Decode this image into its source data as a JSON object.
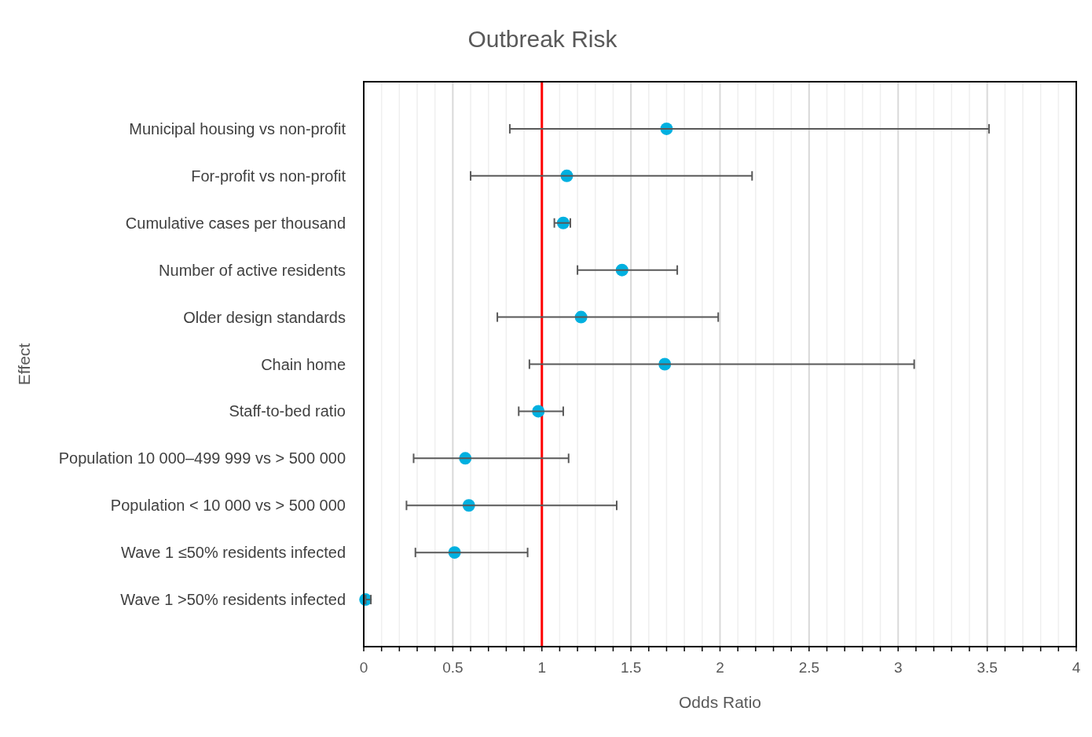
{
  "chart_data": {
    "type": "scatter",
    "orientation": "horizontal",
    "title": "Outbreak Risk",
    "xlabel": "Odds Ratio",
    "ylabel": "Effect",
    "categories": [
      "Municipal housing vs non-profit",
      "For-profit vs non-profit",
      "Cumulative cases per thousand",
      "Number of active residents",
      "Older design standards",
      "Chain home",
      "Staff-to-bed ratio",
      "Population 10 000–499 999 vs > 500 000",
      "Population < 10 000 vs > 500 000",
      "Wave 1 ≤50% residents infected",
      "Wave 1 >50% residents infected"
    ],
    "series": [
      {
        "color": "#00b0e0",
        "values": [
          1.7,
          1.14,
          1.12,
          1.45,
          1.22,
          1.69,
          0.98,
          0.57,
          0.59,
          0.51,
          0.01
        ],
        "errors": [
          [
            0.82,
            3.51
          ],
          [
            0.6,
            2.18
          ],
          [
            1.07,
            1.16
          ],
          [
            1.2,
            1.76
          ],
          [
            0.75,
            1.99
          ],
          [
            0.93,
            3.09
          ],
          [
            0.87,
            1.12
          ],
          [
            0.28,
            1.15
          ],
          [
            0.24,
            1.42
          ],
          [
            0.29,
            0.92
          ],
          [
            0.01,
            0.04
          ]
        ]
      }
    ],
    "marker": "circle",
    "xlim": [
      0,
      4
    ],
    "xticks": [
      0,
      {
        "value": 0.1,
        "label": null
      },
      {
        "value": 0.2,
        "label": null
      },
      {
        "value": 0.3,
        "label": null
      },
      {
        "value": 0.4,
        "label": null
      },
      0.5,
      {
        "value": 0.6,
        "label": null
      },
      {
        "value": 0.7,
        "label": null
      },
      {
        "value": 0.8,
        "label": null
      },
      {
        "value": 0.9,
        "label": null
      },
      1,
      {
        "value": 1.1,
        "label": null
      },
      {
        "value": 1.2,
        "label": null
      },
      {
        "value": 1.3,
        "label": null
      },
      {
        "value": 1.4,
        "label": null
      },
      1.5,
      {
        "value": 1.6,
        "label": null
      },
      {
        "value": 1.7,
        "label": null
      },
      {
        "value": 1.8,
        "label": null
      },
      {
        "value": 1.9,
        "label": null
      },
      2,
      {
        "value": 2.1,
        "label": null
      },
      {
        "value": 2.2,
        "label": null
      },
      {
        "value": 2.3,
        "label": null
      },
      {
        "value": 2.4,
        "label": null
      },
      2.5,
      {
        "value": 2.6,
        "label": null
      },
      {
        "value": 2.7,
        "label": null
      },
      {
        "value": 2.8,
        "label": null
      },
      {
        "value": 2.9,
        "label": null
      },
      3,
      {
        "value": 3.1,
        "label": null
      },
      {
        "value": 3.2,
        "label": null
      },
      {
        "value": 3.3,
        "label": null
      },
      {
        "value": 3.4,
        "label": null
      },
      3.5,
      {
        "value": 3.6,
        "label": null
      },
      {
        "value": 3.7,
        "label": null
      },
      {
        "value": 3.8,
        "label": null
      },
      {
        "value": 3.9,
        "label": null
      },
      4
    ],
    "grid": "x",
    "ref_lines": [
      {
        "axis": "x",
        "value": 1,
        "color": "#ff0000"
      }
    ]
  }
}
